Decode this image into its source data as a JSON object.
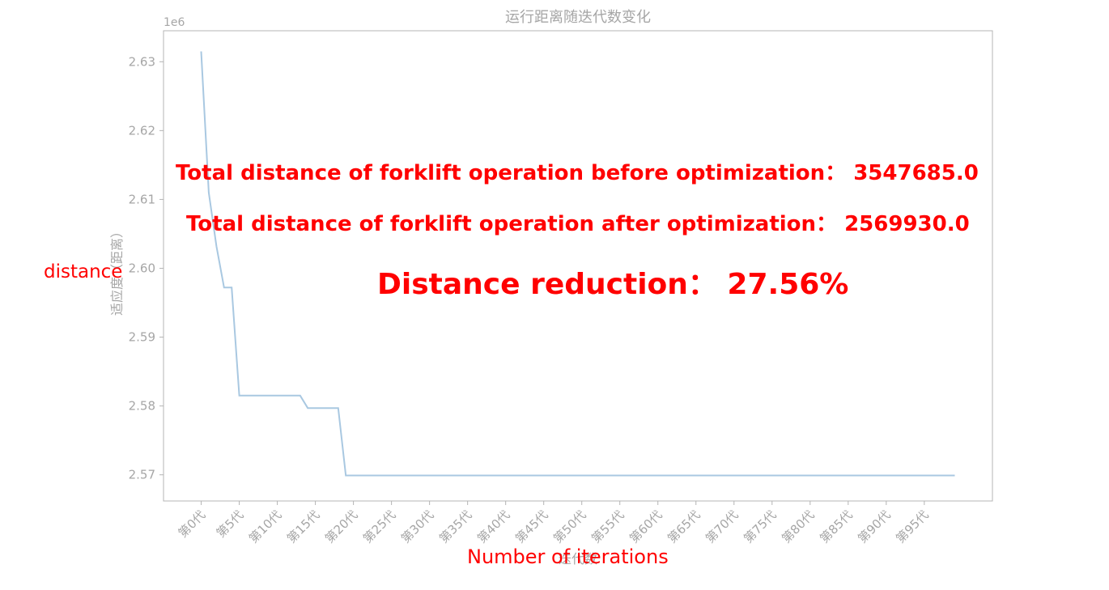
{
  "chart_data": {
    "type": "line",
    "title": "运行距离随迭代数变化",
    "xlabel": "迭代数",
    "ylabel": "适应度（距离）",
    "y_scale_label": "1e6",
    "grid": false,
    "ylim": [
      2.5662,
      2.6345
    ],
    "xlim": [
      -4.95,
      103.95
    ],
    "y_ticks": [
      {
        "value": 2.57,
        "label": "2.57"
      },
      {
        "value": 2.58,
        "label": "2.58"
      },
      {
        "value": 2.59,
        "label": "2.59"
      },
      {
        "value": 2.6,
        "label": "2.60"
      },
      {
        "value": 2.61,
        "label": "2.61"
      },
      {
        "value": 2.62,
        "label": "2.62"
      },
      {
        "value": 2.63,
        "label": "2.63"
      }
    ],
    "x_ticks": [
      {
        "value": 0,
        "label": "第0代"
      },
      {
        "value": 5,
        "label": "第5代"
      },
      {
        "value": 10,
        "label": "第10代"
      },
      {
        "value": 15,
        "label": "第15代"
      },
      {
        "value": 20,
        "label": "第20代"
      },
      {
        "value": 25,
        "label": "第25代"
      },
      {
        "value": 30,
        "label": "第30代"
      },
      {
        "value": 35,
        "label": "第35代"
      },
      {
        "value": 40,
        "label": "第40代"
      },
      {
        "value": 45,
        "label": "第45代"
      },
      {
        "value": 50,
        "label": "第50代"
      },
      {
        "value": 55,
        "label": "第55代"
      },
      {
        "value": 60,
        "label": "第60代"
      },
      {
        "value": 65,
        "label": "第65代"
      },
      {
        "value": 70,
        "label": "第70代"
      },
      {
        "value": 75,
        "label": "第75代"
      },
      {
        "value": 80,
        "label": "第80代"
      },
      {
        "value": 85,
        "label": "第85代"
      },
      {
        "value": 90,
        "label": "第90代"
      },
      {
        "value": 95,
        "label": "第95代"
      }
    ],
    "series": [
      {
        "color": "#a9c8e1",
        "x": [
          0,
          1,
          2,
          3,
          4,
          5,
          6,
          7,
          8,
          9,
          10,
          11,
          12,
          13,
          14,
          15,
          16,
          17,
          18,
          19,
          99
        ],
        "values": [
          2.6315,
          2.611,
          2.6032,
          2.5972,
          2.5972,
          2.5815,
          2.5815,
          2.5815,
          2.5815,
          2.5815,
          2.5815,
          2.5815,
          2.5815,
          2.5815,
          2.5797,
          2.5797,
          2.5797,
          2.5797,
          2.5797,
          2.5699,
          2.5699
        ]
      }
    ]
  },
  "annotations": {
    "before": "Total distance of forklift operation before optimization： 3547685.0",
    "after": "Total distance of forklift operation after optimization： 2569930.0",
    "reduction": "Distance reduction： 27.56%",
    "ylabel_en": "distance",
    "xlabel_en": "Number of iterations",
    "color": "#ff0000"
  }
}
